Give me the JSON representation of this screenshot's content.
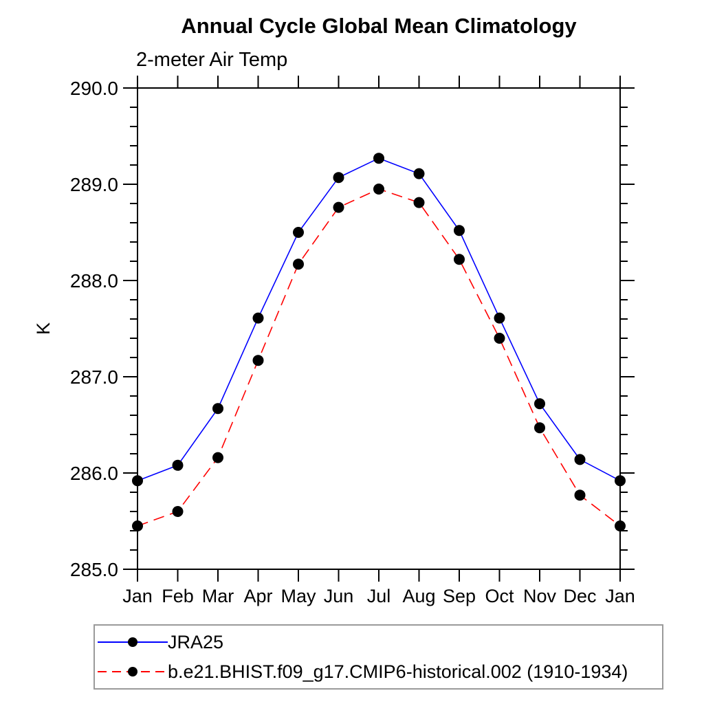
{
  "chart_data": {
    "type": "line",
    "title": "Annual Cycle Global Mean Climatology",
    "subtitle": "2-meter Air Temp",
    "ylabel": "K",
    "categories": [
      "Jan",
      "Feb",
      "Mar",
      "Apr",
      "May",
      "Jun",
      "Jul",
      "Aug",
      "Sep",
      "Oct",
      "Nov",
      "Dec",
      "Jan"
    ],
    "ylim": [
      285.0,
      290.0
    ],
    "ytick_major_step": 1.0,
    "ytick_minor_step": 0.2,
    "ytick_labels": [
      "285.0",
      "286.0",
      "287.0",
      "288.0",
      "289.0",
      "290.0"
    ],
    "grid": false,
    "axis_color": "#000000",
    "marker_color": "#000000",
    "legend_position": "bottom-left boxed",
    "series": [
      {
        "name": "JRA25",
        "color": "#0000ff",
        "line_style": "solid",
        "marker": "filled-circle",
        "values": [
          285.92,
          286.08,
          286.67,
          287.61,
          288.5,
          289.07,
          289.27,
          289.11,
          288.52,
          287.61,
          286.72,
          286.14,
          285.92
        ]
      },
      {
        "name": "b.e21.BHIST.f09_g17.CMIP6-historical.002 (1910-1934)",
        "color": "#ff0000",
        "line_style": "dashed",
        "marker": "filled-circle",
        "values": [
          285.45,
          285.6,
          286.16,
          287.17,
          288.17,
          288.76,
          288.95,
          288.81,
          288.22,
          287.4,
          286.47,
          285.77,
          285.45
        ]
      }
    ]
  }
}
